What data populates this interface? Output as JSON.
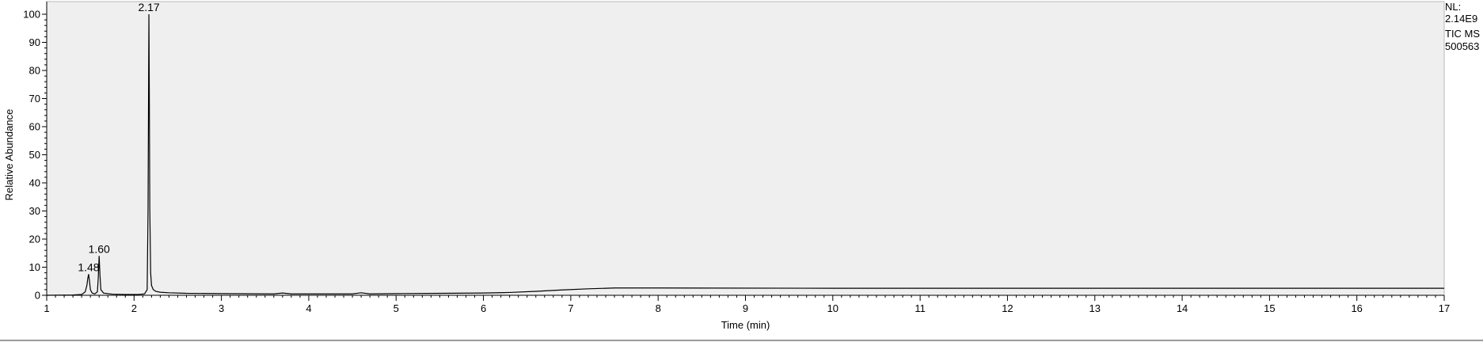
{
  "chart_data": {
    "type": "line",
    "xlabel": "Time (min)",
    "ylabel": "Relative Abundance",
    "xlim": [
      1,
      17
    ],
    "ylim": [
      0,
      100
    ],
    "x_ticks": [
      "1",
      "2",
      "3",
      "4",
      "5",
      "6",
      "7",
      "8",
      "9",
      "10",
      "11",
      "12",
      "13",
      "14",
      "15",
      "16",
      "17"
    ],
    "y_ticks": [
      "0",
      "10",
      "20",
      "30",
      "40",
      "50",
      "60",
      "70",
      "80",
      "90",
      "100"
    ],
    "grid": false,
    "plot_background": "#efefef",
    "line_color": "#000000",
    "peak_labels": [
      {
        "rt": 1.48,
        "abundance": 7.5,
        "label": "1.48"
      },
      {
        "rt": 1.6,
        "abundance": 14,
        "label": "1.60"
      },
      {
        "rt": 2.17,
        "abundance": 100,
        "label": "2.17"
      }
    ],
    "series": [
      {
        "x": [
          1.0,
          1.3,
          1.4,
          1.44,
          1.46,
          1.47,
          1.48,
          1.49,
          1.5,
          1.52,
          1.55,
          1.58,
          1.59,
          1.6,
          1.61,
          1.62,
          1.65,
          1.75,
          1.9,
          2.05,
          2.12,
          2.15,
          2.16,
          2.17,
          2.175,
          2.18,
          2.19,
          2.2,
          2.22,
          2.25,
          2.3,
          2.4,
          2.6,
          3.0,
          3.6,
          3.7,
          3.8,
          4.0,
          4.5,
          4.6,
          4.7,
          5.0,
          5.5,
          6.0,
          6.3,
          6.6,
          6.9,
          7.2,
          7.5,
          8.0,
          10.0,
          12.0,
          14.0,
          16.0,
          17.0
        ],
        "y": [
          0.0,
          0.1,
          0.3,
          1.2,
          3.5,
          6.0,
          7.5,
          5.0,
          2.0,
          0.8,
          0.5,
          1.2,
          6.0,
          14.0,
          7.0,
          2.0,
          0.8,
          0.4,
          0.3,
          0.3,
          0.5,
          2.0,
          30.0,
          100.0,
          70.0,
          31.0,
          8.0,
          3.5,
          2.0,
          1.4,
          1.1,
          0.9,
          0.7,
          0.6,
          0.5,
          0.8,
          0.5,
          0.5,
          0.5,
          0.9,
          0.5,
          0.6,
          0.7,
          0.8,
          1.0,
          1.4,
          1.9,
          2.3,
          2.6,
          2.6,
          2.5,
          2.5,
          2.5,
          2.5,
          2.5
        ]
      }
    ]
  },
  "info": {
    "lines": [
      "NL:",
      "2.14E9",
      "TIC  MS",
      "500563"
    ]
  }
}
